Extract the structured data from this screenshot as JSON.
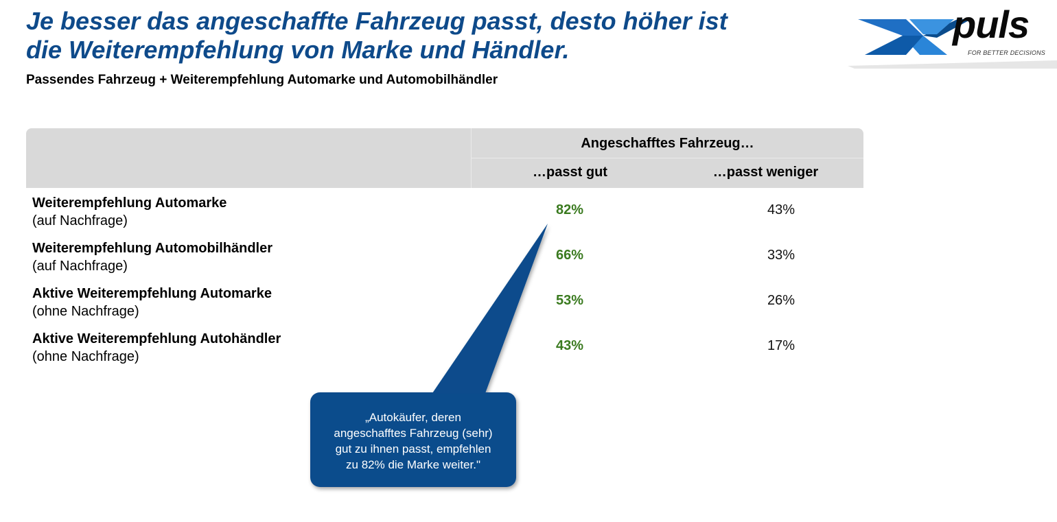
{
  "header": {
    "title_line1": "Je besser das angeschaffte Fahrzeug passt, desto höher ist",
    "title_line2": "die Weiterempfehlung von Marke und Händler.",
    "subtitle": "Passendes Fahrzeug + Weiterempfehlung Automarke und Automobilhändler"
  },
  "logo": {
    "text": "puls",
    "tagline": "FOR BETTER DECISIONS"
  },
  "table": {
    "group_header": "Angeschafftes Fahrzeug…",
    "columns": [
      "…passt gut",
      "…passt weniger"
    ],
    "rows": [
      {
        "label": "Weiterempfehlung Automarke",
        "sublabel": "(auf Nachfrage)",
        "values": [
          "82%",
          "43%"
        ]
      },
      {
        "label": "Weiterempfehlung Automobilhändler",
        "sublabel": "(auf Nachfrage)",
        "values": [
          "66%",
          "33%"
        ]
      },
      {
        "label": "Aktive Weiterempfehlung Automarke",
        "sublabel": "(ohne Nachfrage)",
        "values": [
          "53%",
          "26%"
        ]
      },
      {
        "label": "Aktive Weiterempfehlung Autohändler",
        "sublabel": "(ohne Nachfrage)",
        "values": [
          "43%",
          "17%"
        ]
      }
    ]
  },
  "callout": {
    "lines": [
      "„Autokäufer, deren",
      "angeschafftes Fahrzeug (sehr)",
      "gut zu ihnen passt, empfehlen",
      "zu 82% die Marke weiter.\""
    ]
  },
  "colors": {
    "title": "#0e4a8a",
    "highlight_value": "#3a7a1f",
    "header_bg": "#d9d9d9",
    "callout_bg": "#0b4c8c"
  }
}
